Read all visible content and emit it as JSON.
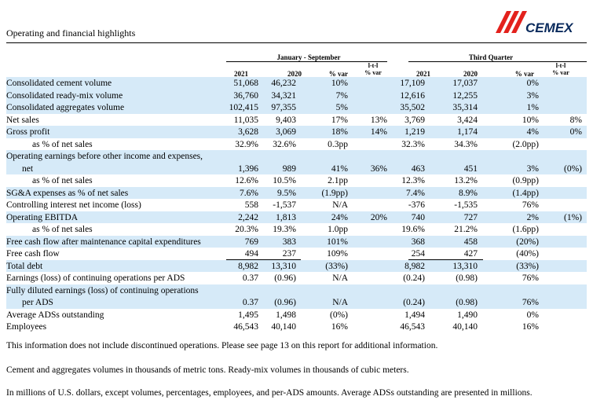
{
  "title": "Operating and financial highlights",
  "logo_text": "CEMEX",
  "headers": {
    "group_ytd": "January - September",
    "group_q": "Third Quarter",
    "ytd_2021": "2021",
    "ytd_2020": "2020",
    "ytd_var": "% var",
    "ytd_ltl": [
      "l-t-l",
      "% var"
    ],
    "q_2021": "2021",
    "q_2020": "2020",
    "q_var": "% var",
    "q_ltl": [
      "l-t-l",
      "% var"
    ]
  },
  "rows": [
    {
      "label": "Consolidated cement volume",
      "v": [
        "51,068",
        "46,232",
        "10%",
        "",
        "17,109",
        "17,037",
        "0%",
        ""
      ]
    },
    {
      "label": "Consolidated ready-mix volume",
      "v": [
        "36,760",
        "34,321",
        "7%",
        "",
        "12,616",
        "12,255",
        "3%",
        ""
      ]
    },
    {
      "label": "Consolidated aggregates volume",
      "v": [
        "102,415",
        "97,355",
        "5%",
        "",
        "35,502",
        "35,314",
        "1%",
        ""
      ]
    },
    {
      "label": "Net sales",
      "v": [
        "11,035",
        "9,403",
        "17%",
        "13%",
        "3,769",
        "3,424",
        "10%",
        "8%"
      ]
    },
    {
      "label": "Gross profit",
      "v": [
        "3,628",
        "3,069",
        "18%",
        "14%",
        "1,219",
        "1,174",
        "4%",
        "0%"
      ]
    },
    {
      "label": "as % of net sales",
      "v": [
        "32.9%",
        "32.6%",
        "0.3pp",
        "",
        "32.3%",
        "34.3%",
        "(2.0pp)",
        ""
      ]
    },
    {
      "label": "Operating earnings before other income and expenses,",
      "v": [
        "",
        "",
        "",
        "",
        "",
        "",
        "",
        ""
      ]
    },
    {
      "label": "net",
      "v": [
        "1,396",
        "989",
        "41%",
        "36%",
        "463",
        "451",
        "3%",
        "(0%)"
      ]
    },
    {
      "label": "as % of net sales",
      "v": [
        "12.6%",
        "10.5%",
        "2.1pp",
        "",
        "12.3%",
        "13.2%",
        "(0.9pp)",
        ""
      ]
    },
    {
      "label": "SG&A expenses as % of net sales",
      "v": [
        "7.6%",
        "9.5%",
        "(1.9pp)",
        "",
        "7.4%",
        "8.9%",
        "(1.4pp)",
        ""
      ]
    },
    {
      "label": "Controlling interest net income (loss)",
      "v": [
        "558",
        "-1,537",
        "N/A",
        "",
        "-376",
        "-1,535",
        "76%",
        ""
      ]
    },
    {
      "label": "Operating EBITDA",
      "v": [
        "2,242",
        "1,813",
        "24%",
        "20%",
        "740",
        "727",
        "2%",
        "(1%)"
      ]
    },
    {
      "label": "as % of net sales",
      "v": [
        "20.3%",
        "19.3%",
        "1.0pp",
        "",
        "19.6%",
        "21.2%",
        "(1.6pp)",
        ""
      ]
    },
    {
      "label": "Free cash flow after maintenance capital expenditures",
      "v": [
        "769",
        "383",
        "101%",
        "",
        "368",
        "458",
        "(20%)",
        ""
      ]
    },
    {
      "label": "Free cash flow",
      "v": [
        "494",
        "237",
        "109%",
        "",
        "254",
        "427",
        "(40%)",
        ""
      ]
    },
    {
      "label": "Total debt",
      "v": [
        "8,982",
        "13,310",
        "(33%)",
        "",
        "8,982",
        "13,310",
        "(33%)",
        ""
      ]
    },
    {
      "label": "Earnings (loss) of continuing operations per ADS",
      "v": [
        "0.37",
        "(0.96)",
        "N/A",
        "",
        "(0.24)",
        "(0.98)",
        "76%",
        ""
      ]
    },
    {
      "label": "Fully diluted earnings (loss) of continuing operations",
      "v": [
        "",
        "",
        "",
        "",
        "",
        "",
        "",
        ""
      ]
    },
    {
      "label": "per ADS",
      "v": [
        "0.37",
        "(0.96)",
        "N/A",
        "",
        "(0.24)",
        "(0.98)",
        "76%",
        ""
      ]
    },
    {
      "label": "Average ADSs outstanding",
      "v": [
        "1,495",
        "1,498",
        "(0%)",
        "",
        "1,494",
        "1,490",
        "0%",
        ""
      ]
    },
    {
      "label": "Employees",
      "v": [
        "46,543",
        "40,140",
        "16%",
        "",
        "46,543",
        "40,140",
        "16%",
        ""
      ]
    }
  ],
  "notes": [
    "This information does not include discontinued operations. Please see page 13 on this report for additional information.",
    "Cement and aggregates volumes in thousands of metric tons. Ready-mix volumes in thousands of cubic meters.",
    "In millions of U.S. dollars, except volumes, percentages, employees, and per-ADS amounts. Average ADSs outstanding are presented in millions."
  ],
  "colors": {
    "band": "#d6eaf8",
    "logo_red": "#e3211c",
    "logo_blue": "#0a2a5c"
  }
}
